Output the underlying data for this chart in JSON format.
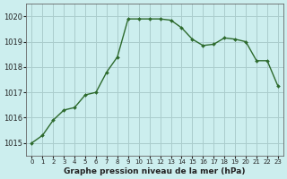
{
  "x": [
    0,
    1,
    2,
    3,
    4,
    5,
    6,
    7,
    8,
    9,
    10,
    11,
    12,
    13,
    14,
    15,
    16,
    17,
    18,
    19,
    20,
    21,
    22,
    23
  ],
  "y": [
    1015.0,
    1015.3,
    1015.9,
    1016.3,
    1016.4,
    1016.9,
    1017.0,
    1017.8,
    1018.4,
    1019.9,
    1019.9,
    1019.9,
    1019.9,
    1019.85,
    1019.55,
    1019.1,
    1018.85,
    1018.9,
    1019.15,
    1019.1,
    1019.0,
    1018.25,
    1018.25,
    1017.25
  ],
  "line_color": "#2d6a2d",
  "marker_color": "#2d6a2d",
  "bg_color": "#cceeee",
  "grid_color": "#aacccc",
  "xlabel": "Graphe pression niveau de la mer (hPa)",
  "ylim_min": 1014.5,
  "ylim_max": 1020.5,
  "xlim_min": -0.5,
  "xlim_max": 23.5,
  "yticks": [
    1015,
    1016,
    1017,
    1018,
    1019,
    1020
  ],
  "xtick_labels": [
    "0",
    "1",
    "2",
    "3",
    "4",
    "5",
    "6",
    "7",
    "8",
    "9",
    "10",
    "11",
    "12",
    "13",
    "14",
    "15",
    "16",
    "17",
    "18",
    "19",
    "20",
    "21",
    "22",
    "23"
  ]
}
